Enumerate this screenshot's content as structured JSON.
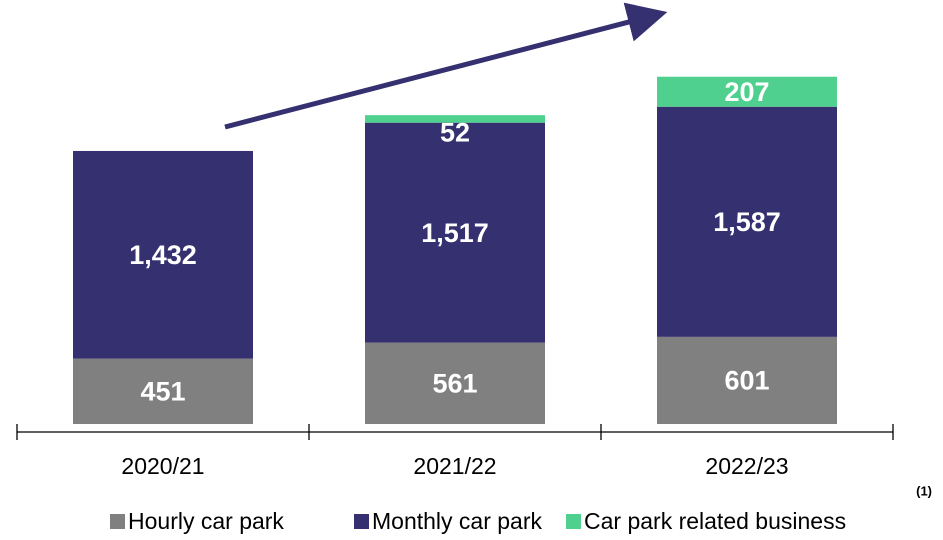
{
  "chart_data": {
    "type": "bar",
    "stacked": true,
    "categories": [
      "2020/21",
      "2021/22",
      "2022/23"
    ],
    "series": [
      {
        "name": "Hourly car park",
        "color": "#808080",
        "values": [
          451,
          561,
          601
        ],
        "value_labels": [
          "451",
          "561",
          "601"
        ]
      },
      {
        "name": "Monthly car park",
        "color": "#35306f",
        "values": [
          1432,
          1517,
          1587
        ],
        "value_labels": [
          "1,432",
          "1,517",
          "1,587"
        ]
      },
      {
        "name": "Car park related business",
        "color": "#4fd08f",
        "values": [
          null,
          52,
          207
        ],
        "value_labels": [
          null,
          "52",
          "207"
        ]
      }
    ],
    "legend_note": "(1)",
    "ylim": [
      0,
      2900
    ]
  }
}
